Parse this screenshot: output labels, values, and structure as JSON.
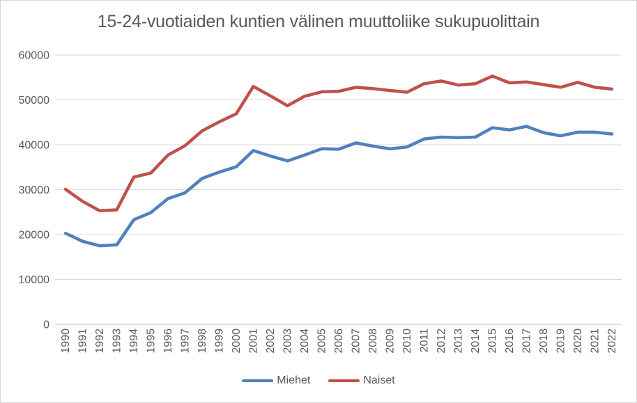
{
  "chart_data": {
    "type": "line",
    "title": "15-24-vuotiaiden kuntien välinen muuttoliike sukupuolittain",
    "x": [
      1990,
      1991,
      1992,
      1993,
      1994,
      1995,
      1996,
      1997,
      1998,
      1999,
      2000,
      2001,
      2002,
      2003,
      2004,
      2005,
      2006,
      2007,
      2008,
      2009,
      2010,
      2011,
      2012,
      2013,
      2014,
      2015,
      2016,
      2017,
      2018,
      2019,
      2020,
      2021,
      2022
    ],
    "series": [
      {
        "name": "Miehet",
        "color": "#4F81BD",
        "values": [
          20300,
          18500,
          17500,
          17700,
          23300,
          24900,
          28000,
          29300,
          32500,
          33900,
          35100,
          38700,
          37500,
          36400,
          37700,
          39100,
          39000,
          40400,
          39700,
          39100,
          39500,
          41300,
          41700,
          41600,
          41700,
          43800,
          43300,
          44100,
          42700,
          42000,
          42800,
          42800,
          42400
        ]
      },
      {
        "name": "Naiset",
        "color": "#C0504D",
        "values": [
          30100,
          27400,
          25300,
          25500,
          32800,
          33700,
          37700,
          39800,
          43100,
          45100,
          46900,
          53000,
          50900,
          48700,
          50800,
          51800,
          51900,
          52800,
          52500,
          52100,
          51700,
          53600,
          54200,
          53300,
          53600,
          55300,
          53800,
          54000,
          53400,
          52800,
          53900,
          52800,
          52400
        ]
      }
    ],
    "xlabel": "",
    "ylabel": "",
    "ylim": [
      0,
      60000
    ],
    "yticks": [
      0,
      10000,
      20000,
      30000,
      40000,
      50000,
      60000
    ],
    "grid": true,
    "legend_position": "bottom"
  },
  "colors": {
    "text": "#595959",
    "gridline": "#D9D9D9",
    "axis": "#BFBFBF",
    "background": "#FFFFFF",
    "border": "#D7D7D7"
  }
}
